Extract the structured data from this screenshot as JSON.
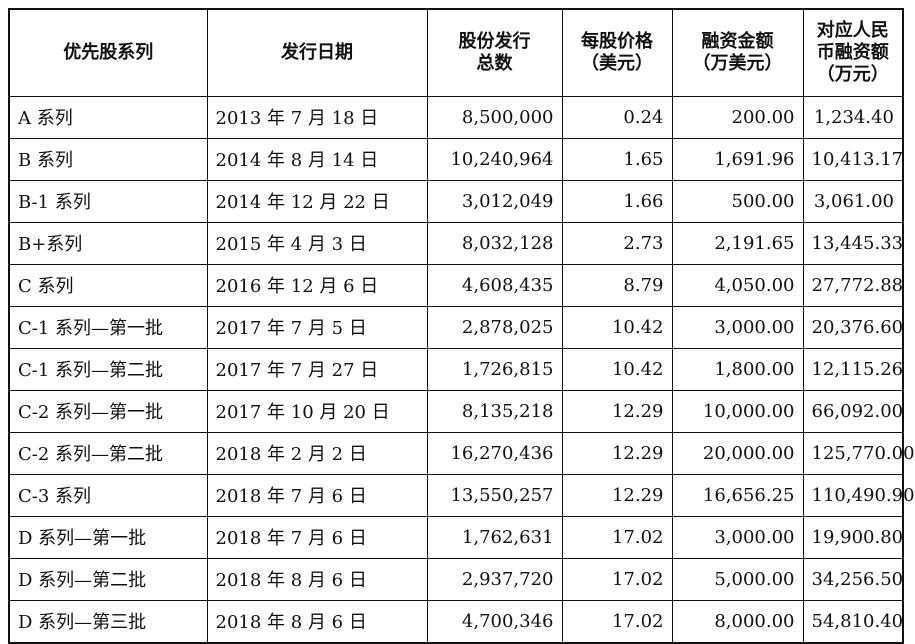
{
  "table": {
    "headers": [
      [
        "优先股系列"
      ],
      [
        "发行日期"
      ],
      [
        "股份发行",
        "总数"
      ],
      [
        "每股价格",
        "（美元）"
      ],
      [
        "融资金额",
        "（万美元）"
      ],
      [
        "对应人民",
        "币融资额",
        "（万元）"
      ]
    ],
    "rows": [
      [
        "A 系列",
        "2013 年 7 月 18 日",
        "8,500,000",
        "0.24",
        "200.00",
        "1,234.40"
      ],
      [
        "B 系列",
        "2014 年 8 月 14 日",
        "10,240,964",
        "1.65",
        "1,691.96",
        "10,413.17"
      ],
      [
        "B-1 系列",
        "2014 年 12 月 22 日",
        "3,012,049",
        "1.66",
        "500.00",
        "3,061.00"
      ],
      [
        "B+系列",
        "2015 年 4 月 3 日",
        "8,032,128",
        "2.73",
        "2,191.65",
        "13,445.33"
      ],
      [
        "C 系列",
        "2016 年 12 月 6 日",
        "4,608,435",
        "8.79",
        "4,050.00",
        "27,772.88"
      ],
      [
        "C-1 系列—第一批",
        "2017 年 7 月 5 日",
        "2,878,025",
        "10.42",
        "3,000.00",
        "20,376.60"
      ],
      [
        "C-1 系列—第二批",
        "2017 年 7 月 27 日",
        "1,726,815",
        "10.42",
        "1,800.00",
        "12,115.26"
      ],
      [
        "C-2 系列—第一批",
        "2017 年 10 月 20 日",
        "8,135,218",
        "12.29",
        "10,000.00",
        "66,092.00"
      ],
      [
        "C-2 系列—第二批",
        "2018 年 2 月 2 日",
        "16,270,436",
        "12.29",
        "20,000.00",
        "125,770.00"
      ],
      [
        "C-3 系列",
        "2018 年 7 月 6 日",
        "13,550,257",
        "12.29",
        "16,656.25",
        "110,490.90"
      ],
      [
        "D 系列—第一批",
        "2018 年 7 月 6 日",
        "1,762,631",
        "17.02",
        "3,000.00",
        "19,900.80"
      ],
      [
        "D 系列—第二批",
        "2018 年 8 月 6 日",
        "2,937,720",
        "17.02",
        "5,000.00",
        "34,256.50"
      ],
      [
        "D 系列—第三批",
        "2018 年 8 月 6 日",
        "4,700,346",
        "17.02",
        "8,000.00",
        "54,810.40"
      ]
    ]
  }
}
